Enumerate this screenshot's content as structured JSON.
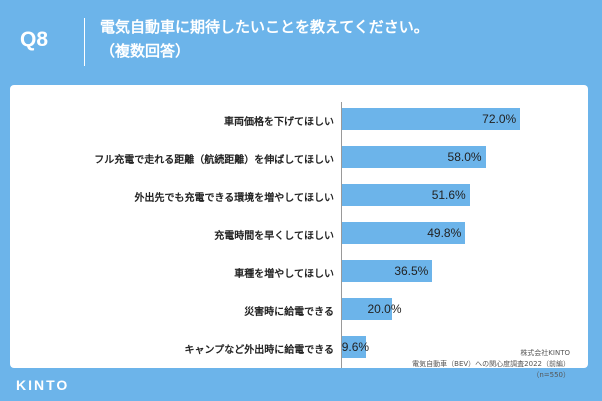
{
  "question": {
    "number": "Q8",
    "title_line1": "電気自動車に期待したいことを教えてください。",
    "title_line2": "（複数回答）"
  },
  "chart_data": {
    "type": "bar",
    "orientation": "horizontal",
    "title": "電気自動車に期待したいことを教えてください。（複数回答）",
    "categories": [
      "車両価格を下げてほしい",
      "フル充電で走れる距離（航続距離）を伸ばしてほしい",
      "外出先でも充電できる環境を増やしてほしい",
      "充電時間を早くしてほしい",
      "車種を増やしてほしい",
      "災害時に給電できる",
      "キャンプなど外出時に給電できる"
    ],
    "values": [
      72.0,
      58.0,
      51.6,
      49.8,
      36.5,
      20.0,
      9.6
    ],
    "value_labels": [
      "72.0%",
      "58.0%",
      "51.6%",
      "49.8%",
      "36.5%",
      "20.0%",
      "9.6%"
    ],
    "unit": "%",
    "xlim": [
      0,
      80
    ],
    "color": "#6cb4ea"
  },
  "source": {
    "company": "株式会社KINTO",
    "survey": "電気自動車（BEV）への関心度調査2022（前編）",
    "sample": "（n=550）"
  },
  "brand": {
    "logo_text": "KINTO"
  },
  "colors": {
    "accent": "#6cb4ea",
    "background": "#6cb4ea",
    "card": "#ffffff"
  }
}
